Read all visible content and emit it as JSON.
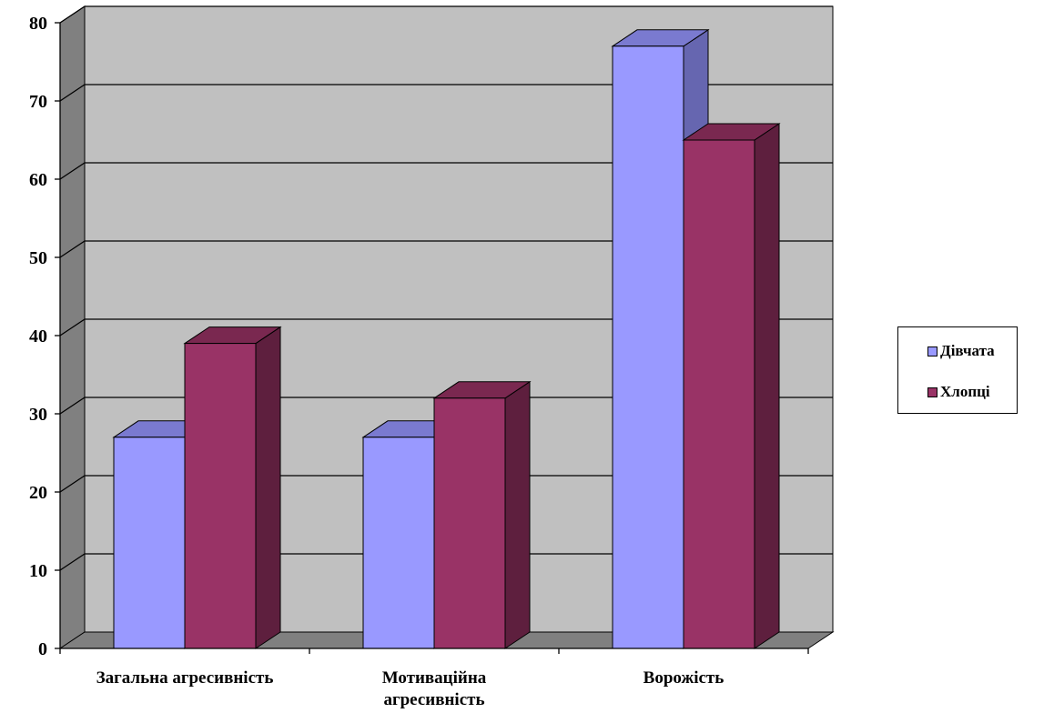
{
  "chart_data": {
    "type": "bar",
    "categories": [
      "Загальна агресивність",
      "Мотиваційна агресивність",
      "Ворожість"
    ],
    "category_lines": [
      [
        "Загальна агресивність"
      ],
      [
        "Мотиваційна",
        "агресивність"
      ],
      [
        "Ворожість"
      ]
    ],
    "series": [
      {
        "name": "Дівчата",
        "values": [
          27,
          27,
          77
        ],
        "color": "#9999ff",
        "side_color": "#6666b0",
        "top_color": "#7a7ad0"
      },
      {
        "name": "Хлопці",
        "values": [
          39,
          32,
          65
        ],
        "color": "#993366",
        "side_color": "#5e1f3e",
        "top_color": "#7a2850"
      }
    ],
    "y_ticks": [
      "0",
      "10",
      "20",
      "30",
      "40",
      "50",
      "60",
      "70",
      "80"
    ],
    "ylim": [
      0,
      80
    ],
    "title": "",
    "xlabel": "",
    "ylabel": "",
    "grid": true,
    "legend_position": "right",
    "wall_color": "#c0c0c0",
    "floor_color": "#808080"
  }
}
